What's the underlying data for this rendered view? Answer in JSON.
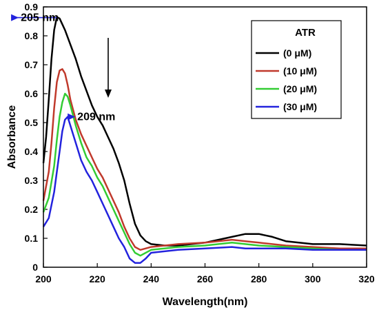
{
  "chart_data": {
    "type": "line",
    "xlabel": "Wavelength(nm)",
    "ylabel": "Absorbance",
    "xlim": [
      200,
      320
    ],
    "ylim": [
      0,
      0.9
    ],
    "xticks": [
      "200",
      "220",
      "240",
      "260",
      "280",
      "300",
      "320"
    ],
    "yticks": [
      "0",
      "0.1",
      "0.2",
      "0.3",
      "0.4",
      "0.5",
      "0.6",
      "0.7",
      "0.8",
      "0.9"
    ],
    "grid": false,
    "legend": {
      "title": "ATR",
      "placement": "top-right",
      "entries": [
        "(0 μM)",
        "(10 μM)",
        "(20 μM)",
        "(30 μM)"
      ]
    },
    "annotations": [
      {
        "text": "205 nm",
        "x": 205,
        "y": 0.87
      },
      {
        "text": "209 nm",
        "x": 209,
        "y": 0.52
      }
    ],
    "series": [
      {
        "name": "(0 μM)",
        "color": "#000000",
        "x": [
          200,
          201,
          202,
          203,
          204,
          205,
          206,
          207,
          208,
          210,
          212,
          214,
          216,
          218,
          220,
          222,
          224,
          226,
          228,
          230,
          232,
          234,
          236,
          238,
          240,
          245,
          250,
          255,
          260,
          265,
          270,
          275,
          280,
          285,
          290,
          300,
          310,
          320
        ],
        "values": [
          0.36,
          0.45,
          0.58,
          0.72,
          0.82,
          0.865,
          0.86,
          0.84,
          0.82,
          0.77,
          0.72,
          0.66,
          0.61,
          0.56,
          0.52,
          0.49,
          0.45,
          0.41,
          0.36,
          0.3,
          0.22,
          0.15,
          0.11,
          0.09,
          0.08,
          0.075,
          0.075,
          0.08,
          0.085,
          0.095,
          0.105,
          0.115,
          0.115,
          0.105,
          0.09,
          0.08,
          0.08,
          0.075
        ]
      },
      {
        "name": "(10 μM)",
        "color": "#c0392b",
        "x": [
          200,
          202,
          203,
          204,
          205,
          206,
          207,
          208,
          209,
          210,
          212,
          214,
          216,
          218,
          220,
          222,
          224,
          226,
          228,
          230,
          232,
          234,
          236,
          238,
          240,
          250,
          260,
          265,
          270,
          275,
          280,
          290,
          300,
          310,
          320
        ],
        "values": [
          0.23,
          0.33,
          0.43,
          0.55,
          0.64,
          0.68,
          0.685,
          0.67,
          0.63,
          0.58,
          0.51,
          0.46,
          0.42,
          0.38,
          0.34,
          0.31,
          0.27,
          0.23,
          0.19,
          0.14,
          0.1,
          0.07,
          0.06,
          0.065,
          0.07,
          0.08,
          0.085,
          0.09,
          0.095,
          0.09,
          0.085,
          0.075,
          0.07,
          0.065,
          0.065
        ]
      },
      {
        "name": "(20 μM)",
        "color": "#33cc33",
        "x": [
          200,
          202,
          204,
          205,
          206,
          207,
          208,
          209,
          210,
          212,
          214,
          216,
          218,
          220,
          222,
          224,
          226,
          228,
          230,
          232,
          234,
          236,
          238,
          240,
          250,
          260,
          265,
          270,
          275,
          280,
          290,
          300,
          310,
          320
        ],
        "values": [
          0.19,
          0.24,
          0.35,
          0.44,
          0.52,
          0.57,
          0.6,
          0.59,
          0.56,
          0.49,
          0.43,
          0.38,
          0.35,
          0.31,
          0.28,
          0.24,
          0.2,
          0.16,
          0.12,
          0.08,
          0.05,
          0.04,
          0.05,
          0.06,
          0.07,
          0.075,
          0.08,
          0.085,
          0.08,
          0.075,
          0.07,
          0.065,
          0.06,
          0.06
        ]
      },
      {
        "name": "(30 μM)",
        "color": "#2222dd",
        "x": [
          200,
          202,
          204,
          205,
          206,
          207,
          208,
          209,
          210,
          212,
          214,
          216,
          218,
          220,
          222,
          224,
          226,
          228,
          230,
          232,
          234,
          236,
          238,
          240,
          250,
          260,
          270,
          275,
          280,
          290,
          300,
          310,
          320
        ],
        "values": [
          0.14,
          0.17,
          0.26,
          0.33,
          0.4,
          0.47,
          0.51,
          0.52,
          0.49,
          0.43,
          0.37,
          0.33,
          0.3,
          0.26,
          0.22,
          0.18,
          0.14,
          0.1,
          0.07,
          0.03,
          0.015,
          0.015,
          0.03,
          0.05,
          0.06,
          0.065,
          0.07,
          0.065,
          0.065,
          0.065,
          0.06,
          0.06,
          0.06
        ]
      }
    ]
  }
}
